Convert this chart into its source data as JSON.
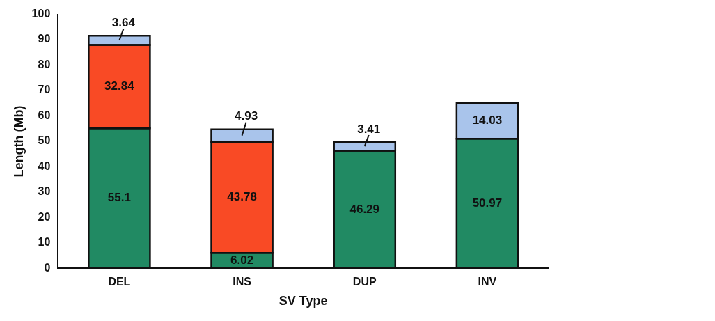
{
  "chart_data": {
    "type": "bar",
    "stacked": true,
    "xlabel": "SV Type",
    "ylabel": "Length (Mb)",
    "categories": [
      "DEL",
      "INS",
      "DUP",
      "INV"
    ],
    "series": [
      {
        "color": "#218a63",
        "values": [
          55.1,
          6.02,
          46.29,
          50.97
        ]
      },
      {
        "color": "#f94a25",
        "values": [
          32.84,
          43.78,
          null,
          null
        ]
      },
      {
        "color": "#a9c4eb",
        "values": [
          3.64,
          4.93,
          3.41,
          14.03
        ]
      }
    ],
    "ylim": [
      0,
      100
    ],
    "yticks": [
      0,
      10,
      20,
      30,
      40,
      50,
      60,
      70,
      80,
      90,
      100
    ],
    "grid": false,
    "legend": false,
    "data_labels": true
  }
}
